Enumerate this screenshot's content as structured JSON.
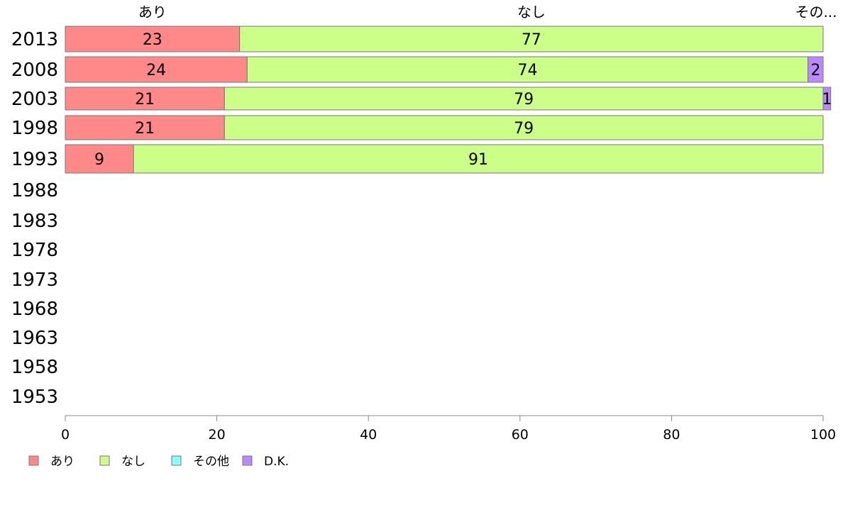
{
  "chart_data": {
    "type": "bar",
    "orientation": "horizontal",
    "stacked": true,
    "categories": [
      "2013",
      "2008",
      "2003",
      "1998",
      "1993",
      "1988",
      "1983",
      "1978",
      "1973",
      "1968",
      "1963",
      "1958",
      "1953"
    ],
    "series": [
      {
        "name": "あり",
        "color": "#ff8888",
        "values": [
          23,
          24,
          21,
          21,
          9,
          null,
          null,
          null,
          null,
          null,
          null,
          null,
          null
        ]
      },
      {
        "name": "なし",
        "color": "#ccff88",
        "values": [
          77,
          74,
          79,
          79,
          91,
          null,
          null,
          null,
          null,
          null,
          null,
          null,
          null
        ]
      },
      {
        "name": "その他",
        "color": "#88ffff",
        "values": [
          0,
          0,
          0,
          0,
          0,
          null,
          null,
          null,
          null,
          null,
          null,
          null,
          null
        ]
      },
      {
        "name": "D.K.",
        "color": "#bb88ff",
        "values": [
          0,
          2,
          1,
          0,
          0,
          null,
          null,
          null,
          null,
          null,
          null,
          null,
          null
        ]
      }
    ],
    "top_labels": [
      "あり",
      "なし",
      "その..."
    ],
    "xlim": [
      0,
      100
    ],
    "xticks": [
      0,
      20,
      40,
      60,
      80,
      100
    ],
    "legend_position": "bottom-left",
    "grid": false
  }
}
